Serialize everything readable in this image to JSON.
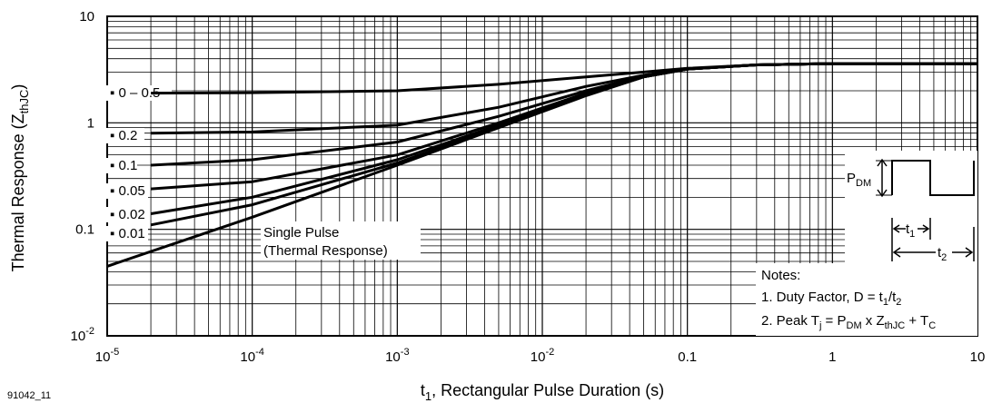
{
  "chart_data": {
    "type": "line",
    "x_scale": "log",
    "y_scale": "log",
    "xlim": [
      1e-05,
      10
    ],
    "ylim": [
      0.01,
      10
    ],
    "xlabel": {
      "pre": "t",
      "sub": "1",
      "post": ", Rectangular Pulse Duration (s)"
    },
    "ylabel": {
      "pre": "Thermal Response (Z",
      "sub": "thJC",
      "post": ")"
    },
    "x_ticks": [
      {
        "value": 1e-05,
        "base": "10",
        "exp": "-5"
      },
      {
        "value": 0.0001,
        "base": "10",
        "exp": "-4"
      },
      {
        "value": 0.001,
        "base": "10",
        "exp": "-3"
      },
      {
        "value": 0.01,
        "base": "10",
        "exp": "-2"
      },
      {
        "value": 0.1,
        "base": "0.1",
        "exp": ""
      },
      {
        "value": 1,
        "base": "1",
        "exp": ""
      },
      {
        "value": 10,
        "base": "10",
        "exp": ""
      }
    ],
    "y_ticks": [
      {
        "value": 10,
        "base": "10",
        "exp": ""
      },
      {
        "value": 1,
        "base": "1",
        "exp": ""
      },
      {
        "value": 0.1,
        "base": "0.1",
        "exp": ""
      },
      {
        "value": 0.01,
        "base": "10",
        "exp": "-2"
      }
    ],
    "grid": true,
    "series": [
      {
        "name": "0 – 0.5",
        "x": [
          2e-05,
          0.0001,
          0.001,
          0.005,
          0.02,
          0.05,
          0.1,
          0.3,
          1,
          10
        ],
        "y": [
          1.9,
          1.92,
          2.0,
          2.3,
          2.7,
          3.0,
          3.25,
          3.5,
          3.6,
          3.6
        ]
      },
      {
        "name": "0.2",
        "x": [
          2e-05,
          0.0001,
          0.001,
          0.005,
          0.02,
          0.05,
          0.1,
          0.3,
          1,
          10
        ],
        "y": [
          0.8,
          0.82,
          0.95,
          1.4,
          2.2,
          2.8,
          3.2,
          3.5,
          3.6,
          3.6
        ]
      },
      {
        "name": "0.1",
        "x": [
          2e-05,
          0.0001,
          0.001,
          0.005,
          0.02,
          0.05,
          0.1,
          0.3,
          1,
          10
        ],
        "y": [
          0.4,
          0.45,
          0.66,
          1.15,
          2.0,
          2.75,
          3.2,
          3.5,
          3.6,
          3.6
        ]
      },
      {
        "name": "0.05",
        "x": [
          2e-05,
          0.0001,
          0.001,
          0.005,
          0.02,
          0.05,
          0.1,
          0.3,
          1,
          10
        ],
        "y": [
          0.24,
          0.28,
          0.5,
          1.0,
          1.9,
          2.7,
          3.2,
          3.5,
          3.6,
          3.6
        ]
      },
      {
        "name": "0.02",
        "x": [
          2e-05,
          0.0001,
          0.001,
          0.005,
          0.02,
          0.05,
          0.1,
          0.3,
          1,
          10
        ],
        "y": [
          0.14,
          0.2,
          0.45,
          0.95,
          1.85,
          2.7,
          3.2,
          3.5,
          3.6,
          3.6
        ]
      },
      {
        "name": "0.01",
        "x": [
          2e-05,
          0.0001,
          0.001,
          0.005,
          0.02,
          0.05,
          0.1,
          0.3,
          1,
          10
        ],
        "y": [
          0.11,
          0.17,
          0.42,
          0.92,
          1.82,
          2.7,
          3.2,
          3.5,
          3.6,
          3.6
        ]
      },
      {
        "name": "Single Pulse",
        "x": [
          1e-05,
          0.0001,
          0.001,
          0.005,
          0.02,
          0.05,
          0.1,
          0.3,
          1,
          10
        ],
        "y": [
          0.045,
          0.13,
          0.4,
          0.9,
          1.8,
          2.7,
          3.2,
          3.5,
          3.6,
          3.6
        ]
      }
    ],
    "single_pulse_label": {
      "line1": "Single Pulse",
      "line2": "(Thermal Response)"
    },
    "notes": {
      "title": "Notes:",
      "note1": {
        "pre": "1.  Duty Factor, D = t",
        "s1": "1",
        "mid": "/t",
        "s2": "2"
      },
      "note2": {
        "pre": "2.  Peak T",
        "s1": "j",
        "mid1": " = P",
        "s2": "DM",
        "mid2": " x Z",
        "s3": "thJC",
        "mid3": " + T",
        "s4": "C"
      }
    },
    "inset": {
      "pdm": {
        "pre": "P",
        "sub": "DM"
      },
      "t1": {
        "pre": "t",
        "sub": "1"
      },
      "t2": {
        "pre": "t",
        "sub": "2"
      }
    }
  },
  "figure_id": "91042_11"
}
